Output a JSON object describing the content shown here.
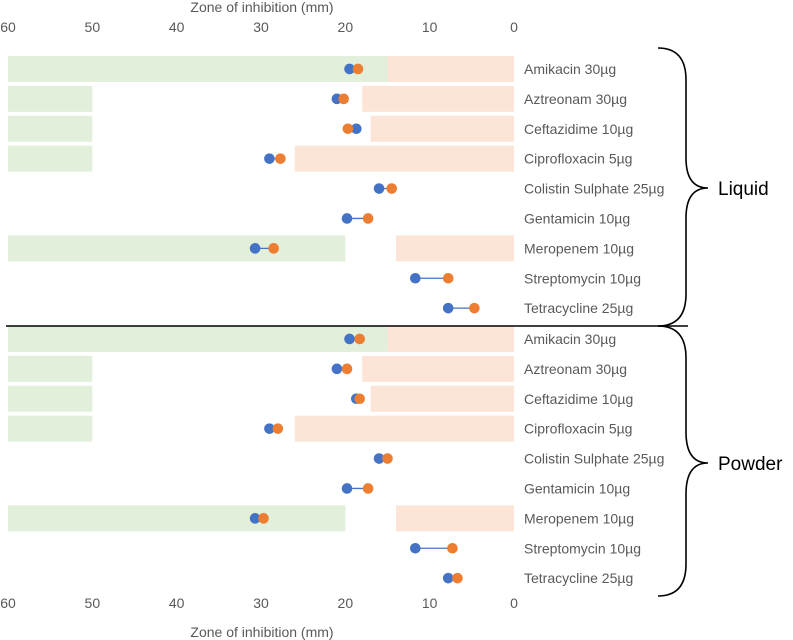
{
  "chart_data": {
    "type": "dumbbell",
    "xlabel": "Zone of inhibition (mm)",
    "xlim": [
      0,
      60
    ],
    "x_reversed": true,
    "x_ticks": [
      "60",
      "50",
      "40",
      "30",
      "20",
      "10",
      "0"
    ],
    "x_tick_values": [
      60,
      50,
      40,
      30,
      20,
      10,
      0
    ],
    "colors": {
      "series_a": "#4472C4",
      "series_b": "#ED7D31",
      "connector": "#4472C4",
      "susceptible_band": "#E2EFDA",
      "resistant_band": "#FCE4D6",
      "divider": "#000000"
    },
    "groups": [
      {
        "name": "Liquid",
        "rows": [
          {
            "label": "Amikacin 30µg",
            "blue": 19.5,
            "orange": 18.5,
            "susceptible_from": 15,
            "resistant_to": 15
          },
          {
            "label": "Aztreonam 30µg",
            "blue": 21.0,
            "orange": 20.2,
            "susceptible_from": 50,
            "resistant_to": 18
          },
          {
            "label": "Ceftazidime 10µg",
            "blue": 18.7,
            "orange": 19.7,
            "susceptible_from": 50,
            "resistant_to": 17
          },
          {
            "label": "Ciprofloxacin 5µg",
            "blue": 29.0,
            "orange": 27.7,
            "susceptible_from": 50,
            "resistant_to": 26
          },
          {
            "label": "Colistin Sulphate 25µg",
            "blue": 16.0,
            "orange": 14.5,
            "susceptible_from": null,
            "resistant_to": null
          },
          {
            "label": "Gentamicin 10µg",
            "blue": 19.8,
            "orange": 17.3,
            "susceptible_from": null,
            "resistant_to": null
          },
          {
            "label": "Meropenem 10µg",
            "blue": 30.7,
            "orange": 28.5,
            "susceptible_from": 20,
            "resistant_to": 14
          },
          {
            "label": "Streptomycin 10µg",
            "blue": 11.7,
            "orange": 7.8,
            "susceptible_from": null,
            "resistant_to": null
          },
          {
            "label": "Tetracycline 25µg",
            "blue": 7.8,
            "orange": 4.7,
            "susceptible_from": null,
            "resistant_to": null
          }
        ]
      },
      {
        "name": "Powder",
        "rows": [
          {
            "label": "Amikacin 30µg",
            "blue": 19.5,
            "orange": 18.3,
            "susceptible_from": 15,
            "resistant_to": 15
          },
          {
            "label": "Aztreonam 30µg",
            "blue": 21.0,
            "orange": 19.8,
            "susceptible_from": 50,
            "resistant_to": 18
          },
          {
            "label": "Ceftazidime 10µg",
            "blue": 18.7,
            "orange": 18.3,
            "susceptible_from": 50,
            "resistant_to": 17
          },
          {
            "label": "Ciprofloxacin 5µg",
            "blue": 29.0,
            "orange": 28.0,
            "susceptible_from": 50,
            "resistant_to": 26
          },
          {
            "label": "Colistin Sulphate 25µg",
            "blue": 16.0,
            "orange": 15.0,
            "susceptible_from": null,
            "resistant_to": null
          },
          {
            "label": "Gentamicin 10µg",
            "blue": 19.8,
            "orange": 17.3,
            "susceptible_from": null,
            "resistant_to": null
          },
          {
            "label": "Meropenem 10µg",
            "blue": 30.7,
            "orange": 29.7,
            "susceptible_from": 20,
            "resistant_to": 14
          },
          {
            "label": "Streptomycin 10µg",
            "blue": 11.7,
            "orange": 7.3,
            "susceptible_from": null,
            "resistant_to": null
          },
          {
            "label": "Tetracycline 25µg",
            "blue": 7.8,
            "orange": 6.7,
            "susceptible_from": null,
            "resistant_to": null
          }
        ]
      }
    ]
  }
}
